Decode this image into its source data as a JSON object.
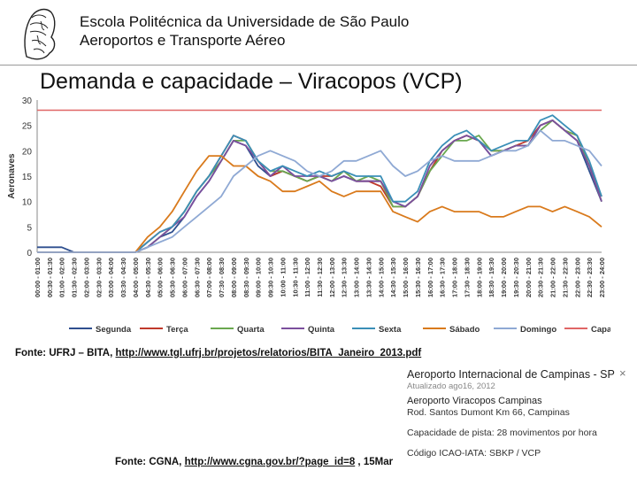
{
  "header": {
    "line1": "Escola Politécnica da Universidade de São Paulo",
    "line2": "Aeroportos e Transporte Aéreo"
  },
  "slide_title": "Demanda e capacidade – Viracopos (VCP)",
  "chart_data": {
    "type": "line",
    "ylabel": "Aeronaves",
    "xlabel": "",
    "ylim": [
      0,
      30
    ],
    "yticks": [
      0,
      5,
      10,
      15,
      20,
      25,
      30
    ],
    "grid": false,
    "legend_position": "bottom",
    "categories": [
      "00:00 - 01:00",
      "00:30 - 01:30",
      "01:00 - 02:00",
      "01:30 - 02:30",
      "02:00 - 03:00",
      "02:30 - 03:30",
      "03:00 - 04:00",
      "03:30 - 04:30",
      "04:00 - 05:00",
      "04:30 - 05:30",
      "05:00 - 06:00",
      "05:30 - 06:30",
      "06:00 - 07:00",
      "06:30 - 07:30",
      "07:00 - 08:00",
      "07:30 - 08:30",
      "08:00 - 09:00",
      "08:30 - 09:30",
      "09:00 - 10:00",
      "09:30 - 10:30",
      "10:00 - 11:00",
      "10:30 - 11:30",
      "11:00 - 12:00",
      "11:30 - 12:30",
      "12:00 - 13:00",
      "12:30 - 13:30",
      "13:00 - 14:00",
      "13:30 - 14:30",
      "14:00 - 15:00",
      "14:30 - 15:30",
      "15:00 - 16:00",
      "15:30 - 16:30",
      "16:00 - 17:00",
      "16:30 - 17:30",
      "17:00 - 18:00",
      "17:30 - 18:30",
      "18:00 - 19:00",
      "18:30 - 19:30",
      "19:00 - 20:00",
      "19:30 - 20:30",
      "20:00 - 21:00",
      "20:30 - 21:30",
      "21:00 - 22:00",
      "21:30 - 22:30",
      "22:00 - 23:00",
      "22:30 - 23:30",
      "23:00 - 24:00"
    ],
    "series": [
      {
        "name": "Segunda",
        "color": "#2f4f8f",
        "values": [
          1,
          1,
          1,
          0,
          0,
          0,
          0,
          0,
          0,
          1,
          3,
          4,
          7,
          11,
          14,
          18,
          22,
          21,
          17,
          15,
          16,
          15,
          14,
          15,
          14,
          15,
          14,
          14,
          14,
          10,
          9,
          11,
          16,
          20,
          22,
          23,
          22,
          19,
          20,
          21,
          21,
          25,
          26,
          24,
          22,
          16,
          10
        ]
      },
      {
        "name": "Terça",
        "color": "#c0392b",
        "values": [
          0,
          0,
          0,
          0,
          0,
          0,
          0,
          0,
          0,
          2,
          4,
          5,
          8,
          12,
          15,
          19,
          23,
          22,
          18,
          15,
          16,
          15,
          14,
          15,
          15,
          16,
          14,
          14,
          13,
          9,
          9,
          11,
          16,
          20,
          22,
          23,
          22,
          20,
          20,
          21,
          22,
          25,
          26,
          24,
          23,
          17,
          11
        ]
      },
      {
        "name": "Quarta",
        "color": "#6aa84f",
        "values": [
          0,
          0,
          0,
          0,
          0,
          0,
          0,
          0,
          0,
          1,
          3,
          5,
          8,
          12,
          15,
          18,
          22,
          22,
          18,
          16,
          16,
          15,
          14,
          15,
          14,
          16,
          14,
          15,
          14,
          9,
          9,
          11,
          16,
          19,
          22,
          22,
          23,
          20,
          20,
          21,
          21,
          24,
          26,
          24,
          23,
          17,
          10
        ]
      },
      {
        "name": "Quinta",
        "color": "#7b4f9d",
        "values": [
          0,
          0,
          0,
          0,
          0,
          0,
          0,
          0,
          0,
          1,
          3,
          5,
          7,
          11,
          14,
          18,
          22,
          21,
          18,
          15,
          17,
          15,
          15,
          15,
          14,
          15,
          14,
          14,
          14,
          10,
          9,
          11,
          17,
          20,
          22,
          23,
          22,
          19,
          20,
          21,
          21,
          25,
          26,
          24,
          22,
          17,
          10
        ]
      },
      {
        "name": "Sexta",
        "color": "#3a8fb7",
        "values": [
          0,
          0,
          0,
          0,
          0,
          0,
          0,
          0,
          0,
          2,
          4,
          5,
          8,
          12,
          15,
          19,
          23,
          22,
          18,
          16,
          17,
          16,
          15,
          16,
          15,
          16,
          15,
          15,
          15,
          10,
          10,
          12,
          18,
          21,
          23,
          24,
          22,
          20,
          21,
          22,
          22,
          26,
          27,
          25,
          23,
          18,
          11
        ]
      },
      {
        "name": "Sábado",
        "color": "#d97a1c",
        "values": [
          0,
          0,
          0,
          0,
          0,
          0,
          0,
          0,
          0,
          3,
          5,
          8,
          12,
          16,
          19,
          19,
          17,
          17,
          15,
          14,
          12,
          12,
          13,
          14,
          12,
          11,
          12,
          12,
          12,
          8,
          7,
          6,
          8,
          9,
          8,
          8,
          8,
          7,
          7,
          8,
          9,
          9,
          8,
          9,
          8,
          7,
          5
        ]
      },
      {
        "name": "Domingo",
        "color": "#8fa9d4",
        "values": [
          0,
          0,
          0,
          0,
          0,
          0,
          0,
          0,
          0,
          1,
          2,
          3,
          5,
          7,
          9,
          11,
          15,
          17,
          19,
          20,
          19,
          18,
          16,
          15,
          16,
          18,
          18,
          19,
          20,
          17,
          15,
          16,
          18,
          19,
          18,
          18,
          18,
          19,
          20,
          20,
          21,
          24,
          22,
          22,
          21,
          20,
          17
        ]
      },
      {
        "name": "Capacidade",
        "color": "#e06666",
        "values": [
          28,
          28,
          28,
          28,
          28,
          28,
          28,
          28,
          28,
          28,
          28,
          28,
          28,
          28,
          28,
          28,
          28,
          28,
          28,
          28,
          28,
          28,
          28,
          28,
          28,
          28,
          28,
          28,
          28,
          28,
          28,
          28,
          28,
          28,
          28,
          28,
          28,
          28,
          28,
          28,
          28,
          28,
          28,
          28,
          28,
          28,
          28
        ]
      }
    ]
  },
  "source1": {
    "prefix": "Fonte: UFRJ – BITA, ",
    "link": "http://www.tgl.ufrj.br/projetos/relatorios/BITA_Janeiro_2013.pdf"
  },
  "source2": {
    "prefix": "Fonte: CGNA, ",
    "link": "http://www.cgna.gov.br/?page_id=8",
    "suffix": " , 15Mar"
  },
  "info_card": {
    "title": "Aeroporto Internacional de Campinas - SP",
    "updated": "Atualizado ago16, 2012",
    "name": "Aeroporto Viracopos Campinas",
    "address": "Rod. Santos Dumont Km 66, Campinas",
    "capacity": "Capacidade de pista: 28 movimentos por hora",
    "code": "Código ICAO-IATA: SBKP / VCP",
    "close": "×"
  }
}
